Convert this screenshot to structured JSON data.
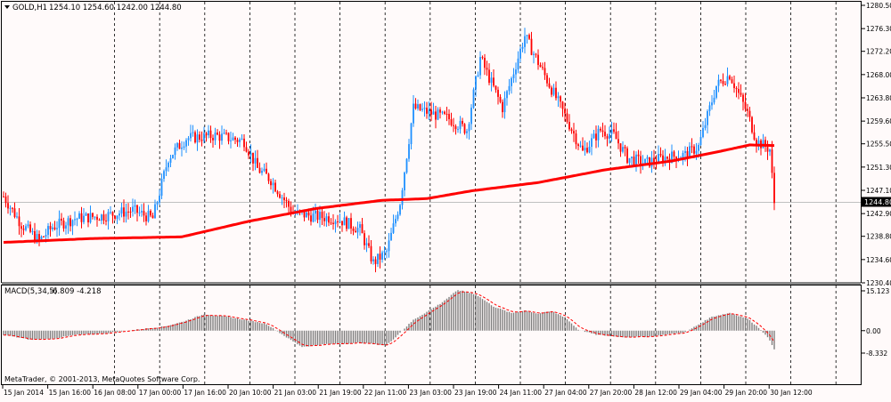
{
  "main_chart": {
    "label": "GOLD,H1",
    "ohlc": "1254.10 1254.60 1242.00 1244.80",
    "current_price": "1244.80",
    "price_ticks": [
      "1280.50",
      "1276.30",
      "1272.20",
      "1268.00",
      "1263.80",
      "1259.60",
      "1255.50",
      "1251.30",
      "1247.10",
      "1242.90",
      "1238.80",
      "1234.60",
      "1230.40"
    ]
  },
  "macd_panel": {
    "label": "MACD(5,34,5)",
    "values": "-6.809 -4.218",
    "ticks": [
      "15.123",
      "0.00",
      "-8.332"
    ]
  },
  "copyright": "MetaTrader, © 2001-2013, MetaQuotes Software Corp.",
  "time_labels": [
    "15 Jan 2014",
    "15 Jan 16:00",
    "16 Jan 08:00",
    "17 Jan 00:00",
    "17 Jan 16:00",
    "20 Jan 10:00",
    "21 Jan 03:00",
    "21 Jan 19:00",
    "22 Jan 11:00",
    "23 Jan 03:00",
    "23 Jan 19:00",
    "24 Jan 11:00",
    "27 Jan 04:00",
    "27 Jan 20:00",
    "28 Jan 12:00",
    "29 Jan 04:00",
    "29 Jan 20:00",
    "30 Jan 12:00"
  ],
  "colors": {
    "bull": "#1e90ff",
    "bear": "#ff0000",
    "ma": "#ff0000",
    "histogram": "#7f7f7f",
    "signal": "#ff0000"
  },
  "chart_data": {
    "type": "candlestick",
    "symbol": "GOLD",
    "timeframe": "H1",
    "ylim": [
      1230.4,
      1280.5
    ],
    "price_anchors": [
      {
        "i": 0,
        "p": 1246
      },
      {
        "i": 8,
        "p": 1241
      },
      {
        "i": 16,
        "p": 1238
      },
      {
        "i": 22,
        "p": 1240.5
      },
      {
        "i": 32,
        "p": 1242
      },
      {
        "i": 45,
        "p": 1242.5
      },
      {
        "i": 58,
        "p": 1243.5
      },
      {
        "i": 67,
        "p": 1242
      },
      {
        "i": 74,
        "p": 1253
      },
      {
        "i": 82,
        "p": 1256.5
      },
      {
        "i": 95,
        "p": 1257
      },
      {
        "i": 108,
        "p": 1256
      },
      {
        "i": 114,
        "p": 1251
      },
      {
        "i": 120,
        "p": 1249
      },
      {
        "i": 130,
        "p": 1243
      },
      {
        "i": 138,
        "p": 1242.5
      },
      {
        "i": 150,
        "p": 1242
      },
      {
        "i": 160,
        "p": 1240
      },
      {
        "i": 166,
        "p": 1234
      },
      {
        "i": 172,
        "p": 1236
      },
      {
        "i": 178,
        "p": 1245
      },
      {
        "i": 184,
        "p": 1262
      },
      {
        "i": 192,
        "p": 1261
      },
      {
        "i": 200,
        "p": 1260
      },
      {
        "i": 208,
        "p": 1258
      },
      {
        "i": 214,
        "p": 1271
      },
      {
        "i": 224,
        "p": 1262
      },
      {
        "i": 234,
        "p": 1275
      },
      {
        "i": 244,
        "p": 1267
      },
      {
        "i": 254,
        "p": 1259
      },
      {
        "i": 260,
        "p": 1254
      },
      {
        "i": 268,
        "p": 1258
      },
      {
        "i": 274,
        "p": 1257
      },
      {
        "i": 280,
        "p": 1253
      },
      {
        "i": 288,
        "p": 1252
      },
      {
        "i": 296,
        "p": 1253
      },
      {
        "i": 306,
        "p": 1253.5
      },
      {
        "i": 312,
        "p": 1255
      },
      {
        "i": 320,
        "p": 1266
      },
      {
        "i": 326,
        "p": 1268
      },
      {
        "i": 334,
        "p": 1261
      },
      {
        "i": 338,
        "p": 1256
      },
      {
        "i": 344,
        "p": 1254.5
      },
      {
        "i": 346,
        "p": 1244.8
      }
    ],
    "moving_average": [
      {
        "i": 0,
        "p": 1237.7
      },
      {
        "i": 40,
        "p": 1238.4
      },
      {
        "i": 80,
        "p": 1238.7
      },
      {
        "i": 110,
        "p": 1241.5
      },
      {
        "i": 140,
        "p": 1243.8
      },
      {
        "i": 170,
        "p": 1245.3
      },
      {
        "i": 190,
        "p": 1245.6
      },
      {
        "i": 210,
        "p": 1247
      },
      {
        "i": 240,
        "p": 1248.5
      },
      {
        "i": 270,
        "p": 1250.8
      },
      {
        "i": 300,
        "p": 1252.4
      },
      {
        "i": 320,
        "p": 1254
      },
      {
        "i": 335,
        "p": 1255.3
      },
      {
        "i": 345,
        "p": 1255.2
      }
    ],
    "macd_ylim": [
      -8.332,
      15.123
    ],
    "macd_anchors": [
      {
        "i": 0,
        "v": -1.5
      },
      {
        "i": 12,
        "v": -3.4
      },
      {
        "i": 22,
        "v": -3
      },
      {
        "i": 32,
        "v": -1.6
      },
      {
        "i": 44,
        "v": -1.1
      },
      {
        "i": 60,
        "v": 0.4
      },
      {
        "i": 72,
        "v": 1.5
      },
      {
        "i": 80,
        "v": 3.2
      },
      {
        "i": 90,
        "v": 6.1
      },
      {
        "i": 100,
        "v": 5.2
      },
      {
        "i": 110,
        "v": 3.8
      },
      {
        "i": 118,
        "v": 2.5
      },
      {
        "i": 128,
        "v": -3
      },
      {
        "i": 134,
        "v": -6
      },
      {
        "i": 145,
        "v": -5
      },
      {
        "i": 160,
        "v": -4.5
      },
      {
        "i": 172,
        "v": -5.5
      },
      {
        "i": 184,
        "v": 4
      },
      {
        "i": 196,
        "v": 10
      },
      {
        "i": 204,
        "v": 15.1
      },
      {
        "i": 212,
        "v": 13.5
      },
      {
        "i": 220,
        "v": 9
      },
      {
        "i": 228,
        "v": 6.5
      },
      {
        "i": 234,
        "v": 7.5
      },
      {
        "i": 240,
        "v": 6.3
      },
      {
        "i": 246,
        "v": 7.2
      },
      {
        "i": 252,
        "v": 5
      },
      {
        "i": 258,
        "v": 0.4
      },
      {
        "i": 266,
        "v": -1.5
      },
      {
        "i": 278,
        "v": -2.4
      },
      {
        "i": 290,
        "v": -2.2
      },
      {
        "i": 300,
        "v": -1.2
      },
      {
        "i": 306,
        "v": -0.6
      },
      {
        "i": 318,
        "v": 5.2
      },
      {
        "i": 326,
        "v": 6.6
      },
      {
        "i": 334,
        "v": 4.5
      },
      {
        "i": 340,
        "v": 0.4
      },
      {
        "i": 344,
        "v": -3.6
      },
      {
        "i": 346,
        "v": -6.8
      }
    ]
  }
}
